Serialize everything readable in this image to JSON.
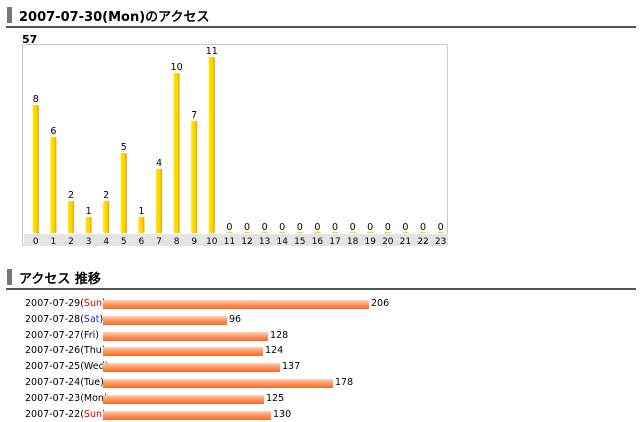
{
  "section1": {
    "title": "2007-07-30(Mon)のアクセス",
    "total": "57"
  },
  "section2": {
    "title": "アクセス 推移"
  },
  "chart_data": [
    {
      "type": "bar",
      "categories": [
        "0",
        "1",
        "2",
        "3",
        "4",
        "5",
        "6",
        "7",
        "8",
        "9",
        "10",
        "11",
        "12",
        "13",
        "14",
        "15",
        "16",
        "17",
        "18",
        "19",
        "20",
        "21",
        "22",
        "23"
      ],
      "values": [
        8,
        6,
        2,
        1,
        2,
        5,
        1,
        4,
        10,
        7,
        11,
        0,
        0,
        0,
        0,
        0,
        0,
        0,
        0,
        0,
        0,
        0,
        0,
        0
      ],
      "ylim": [
        0,
        11
      ],
      "bar_color": "#ffd400",
      "grid": false
    },
    {
      "type": "bar",
      "orientation": "horizontal",
      "categories": [
        {
          "date": "2007-07-29",
          "day": "Sun",
          "day_color": "#d40000"
        },
        {
          "date": "2007-07-28",
          "day": "Sat",
          "day_color": "#1030c8"
        },
        {
          "date": "2007-07-27",
          "day": "Fri",
          "day_color": "#000000"
        },
        {
          "date": "2007-07-26",
          "day": "Thu",
          "day_color": "#000000"
        },
        {
          "date": "2007-07-25",
          "day": "Wed",
          "day_color": "#000000"
        },
        {
          "date": "2007-07-24",
          "day": "Tue",
          "day_color": "#000000"
        },
        {
          "date": "2007-07-23",
          "day": "Mon",
          "day_color": "#000000"
        },
        {
          "date": "2007-07-22",
          "day": "Sun",
          "day_color": "#d40000"
        }
      ],
      "values": [
        206,
        96,
        128,
        124,
        137,
        178,
        125,
        130
      ],
      "bar_color": "#f26a2a"
    }
  ]
}
